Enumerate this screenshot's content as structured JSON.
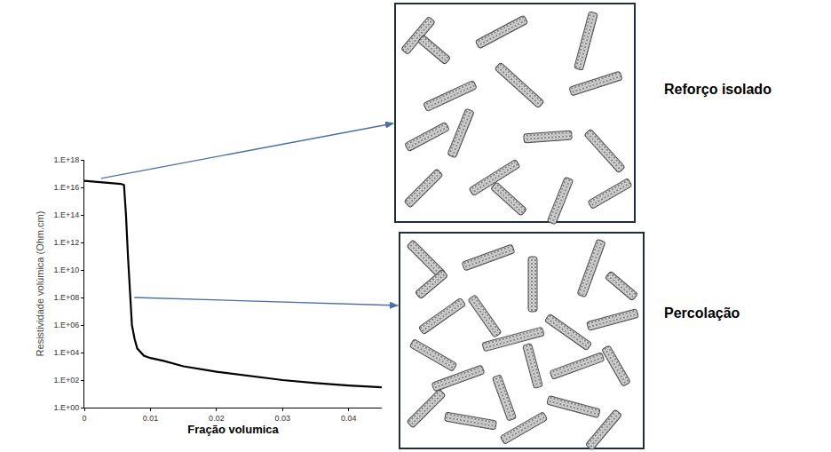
{
  "chart_data": {
    "type": "line",
    "x_label": "Fração volumica",
    "y_label": "Resistividade volúmica (Ohm.cm)",
    "x": [
      0,
      0.002,
      0.004,
      0.0055,
      0.006,
      0.0063,
      0.0066,
      0.0069,
      0.0072,
      0.0076,
      0.008,
      0.009,
      0.01,
      0.012,
      0.015,
      0.02,
      0.025,
      0.03,
      0.035,
      0.04,
      0.045
    ],
    "values": [
      3e+16,
      2.5e+16,
      2e+16,
      1.8e+16,
      1.5e+16,
      100000000000000.0,
      100000000000.0,
      100000000.0,
      1000000.0,
      100000.0,
      20000.0,
      6000.0,
      4000.0,
      2500.0,
      1000.0,
      400,
      200,
      100,
      60,
      40,
      30
    ],
    "color": "#000000",
    "log": "y",
    "grid": false,
    "xlim": [
      0,
      0.045
    ],
    "xticks": [
      0,
      0.01,
      0.02,
      0.03,
      0.04
    ],
    "ylim": [
      1,
      1e+18
    ],
    "yticks": [
      {
        "value": 1,
        "label": "1.E+00"
      },
      {
        "value": 100,
        "label": "1.E+02"
      },
      {
        "value": 10000,
        "label": "1.E+04"
      },
      {
        "value": 1000000,
        "label": "1.E+06"
      },
      {
        "value": 100000000,
        "label": "1.E+08"
      },
      {
        "value": 10000000000,
        "label": "1.E+10"
      },
      {
        "value": 1000000000000,
        "label": "1.E+12"
      },
      {
        "value": 100000000000000,
        "label": "1.E+14"
      },
      {
        "value": 10000000000000000,
        "label": "1.E+16"
      },
      {
        "value": 1e+18,
        "label": "1.E+18"
      }
    ],
    "annotations": [
      "Reforço isolado",
      "Percolação"
    ]
  }
}
